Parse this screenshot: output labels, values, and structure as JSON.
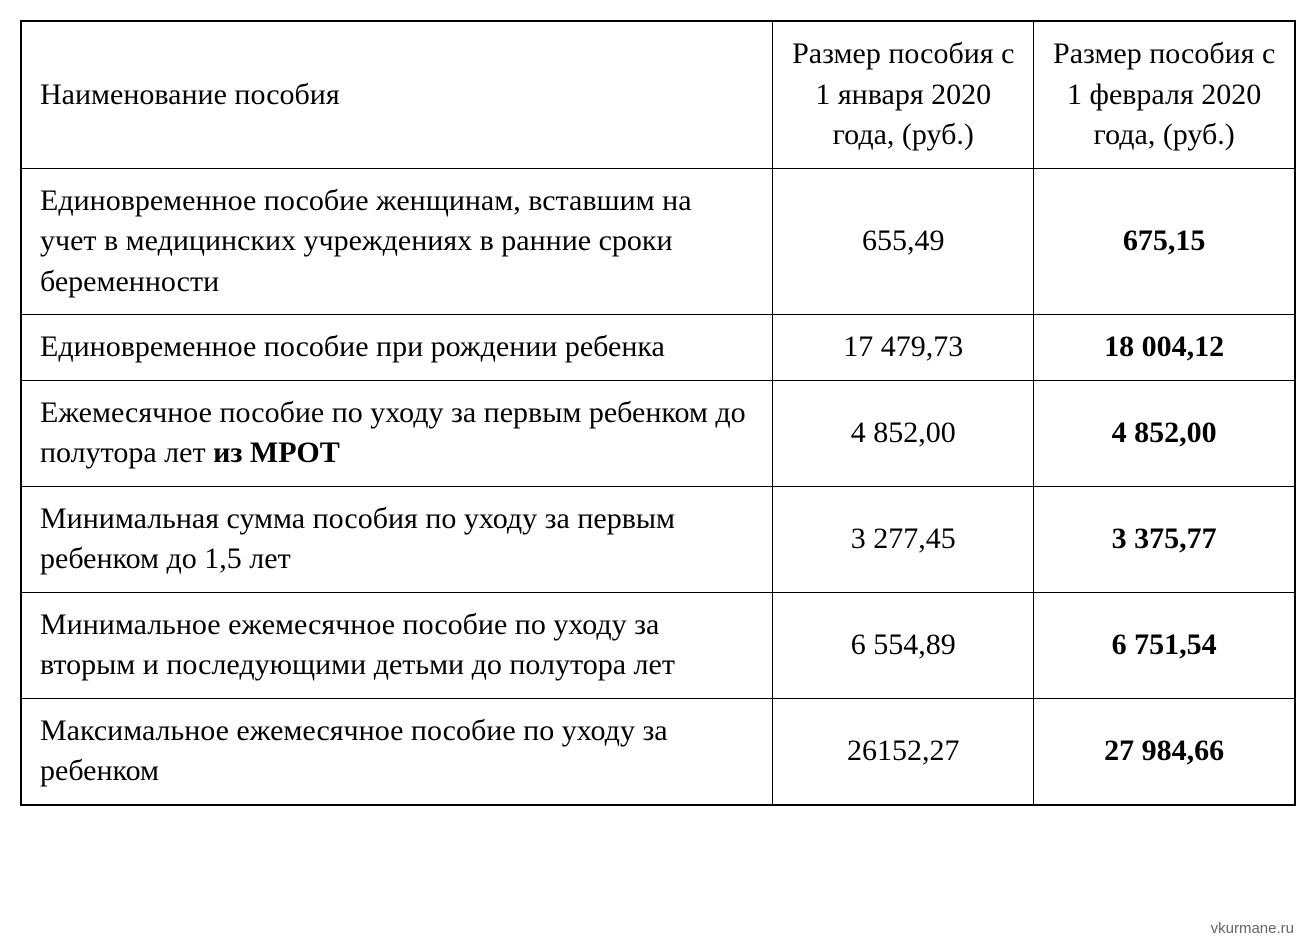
{
  "table": {
    "type": "table",
    "background_color": "#ffffff",
    "border_color": "#000000",
    "font_family": "Times New Roman",
    "font_size_pt": 22,
    "columns": [
      {
        "label": "Наименование пособия",
        "align": "left",
        "width_percent": 59
      },
      {
        "label": "Размер пособия с 1 января 2020 года, (руб.)",
        "align": "center",
        "width_percent": 20.5
      },
      {
        "label": "Размер пособия с 1 февраля 2020 года, (руб.)",
        "align": "center",
        "width_percent": 20.5,
        "bold_values": true
      }
    ],
    "rows": [
      {
        "name_prefix": "Единовременное пособие женщинам, вставшим на учет в медицинских учреждениях в ранние сроки беременности",
        "name_bold_suffix": "",
        "jan": "655,49",
        "feb": "675,15"
      },
      {
        "name_prefix": "Единовременное пособие при рождении ребенка",
        "name_bold_suffix": "",
        "jan": "17 479,73",
        "feb": "18 004,12"
      },
      {
        "name_prefix": "Ежемесячное пособие по уходу за первым ребенком до полутора лет ",
        "name_bold_suffix": "из МРОТ",
        "jan": "4 852,00",
        "feb": "4 852,00"
      },
      {
        "name_prefix": "Минимальная сумма пособия по уходу за первым ребенком до 1,5 лет",
        "name_bold_suffix": "",
        "jan": "3 277,45",
        "feb": "3 375,77"
      },
      {
        "name_prefix": "Минимальное ежемесячное пособие по уходу за вторым и последующими детьми до полутора лет",
        "name_bold_suffix": "",
        "jan": "6 554,89",
        "feb": "6 751,54"
      },
      {
        "name_prefix": "Максимальное ежемесячное пособие по уходу за ребенком",
        "name_bold_suffix": "",
        "jan": "26152,27",
        "feb": "27 984,66"
      }
    ]
  },
  "watermark": "vkurmane.ru"
}
